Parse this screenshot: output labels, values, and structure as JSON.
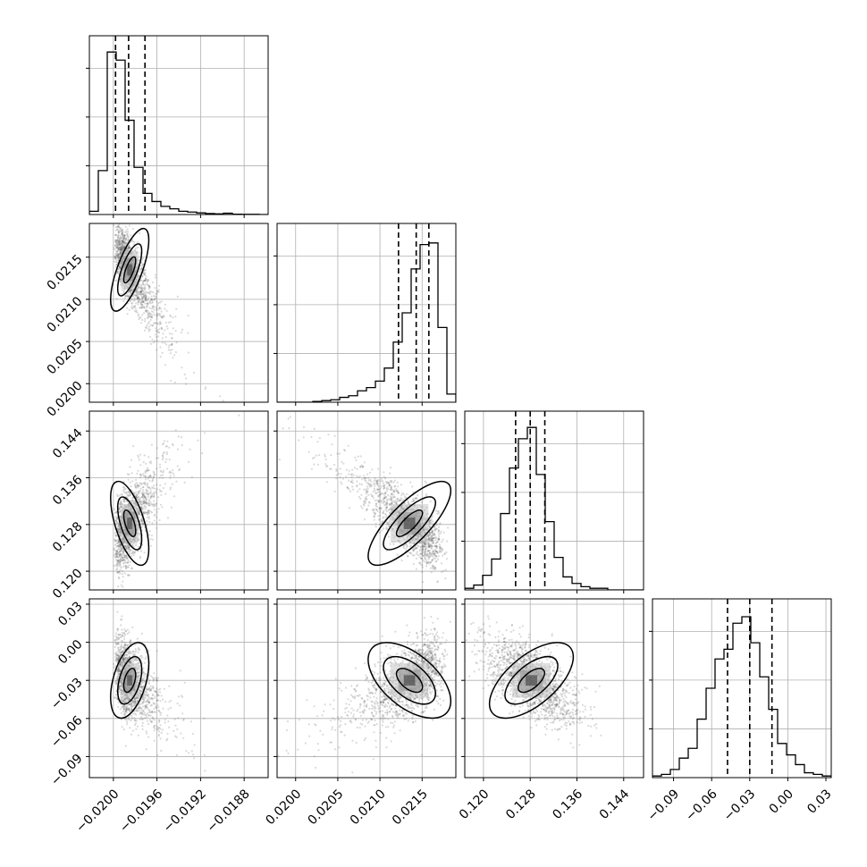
{
  "chart_data": {
    "type": "corner",
    "grid": true,
    "parameters": [
      {
        "ticks": [
          -0.02,
          -0.0196,
          -0.0192,
          -0.0188
        ],
        "tick_labels": [
          "−0.0200",
          "−0.0196",
          "−0.0192",
          "−0.0188"
        ],
        "range": [
          -0.02022,
          -0.01858
        ]
      },
      {
        "ticks": [
          0.02,
          0.0205,
          0.021,
          0.0215
        ],
        "tick_labels": [
          "0.0200",
          "0.0205",
          "0.0210",
          "0.0215"
        ],
        "range": [
          0.01978,
          0.0219
        ]
      },
      {
        "ticks": [
          0.12,
          0.128,
          0.136,
          0.144
        ],
        "tick_labels": [
          "0.120",
          "0.128",
          "0.136",
          "0.144"
        ],
        "range": [
          0.1168,
          0.1474
        ]
      },
      {
        "ticks": [
          -0.09,
          -0.06,
          -0.03,
          0.0,
          0.03
        ],
        "tick_labels": [
          "−0.09",
          "−0.06",
          "−0.03",
          "0.00",
          "0.03"
        ],
        "range": [
          -0.1066,
          0.0342
        ]
      }
    ],
    "quantiles": [
      [
        -0.01998,
        -0.01986,
        -0.01971
      ],
      [
        0.02122,
        0.02143,
        0.02158
      ],
      [
        0.1255,
        0.128,
        0.1305
      ],
      [
        -0.0475,
        -0.03,
        -0.0125
      ]
    ],
    "histograms": [
      {
        "counts": [
          0.02,
          0.27,
          1.0,
          0.95,
          0.58,
          0.29,
          0.13,
          0.08,
          0.05,
          0.035,
          0.02,
          0.015,
          0.01,
          0.006,
          0.004,
          0.008,
          0.002,
          0.001,
          0.001,
          0.0
        ]
      },
      {
        "counts": [
          0.0,
          0.0,
          0.0,
          0.0,
          0.005,
          0.01,
          0.015,
          0.03,
          0.04,
          0.07,
          0.09,
          0.13,
          0.21,
          0.37,
          0.55,
          0.82,
          0.97,
          0.98,
          0.46,
          0.05
        ]
      },
      {
        "counts": [
          0.01,
          0.03,
          0.09,
          0.19,
          0.47,
          0.75,
          0.93,
          1.0,
          0.71,
          0.42,
          0.2,
          0.08,
          0.04,
          0.02,
          0.01,
          0.01,
          0.0,
          0.0,
          0.0,
          0.0
        ]
      },
      {
        "counts": [
          0.01,
          0.02,
          0.05,
          0.12,
          0.18,
          0.36,
          0.55,
          0.73,
          0.79,
          0.95,
          0.99,
          0.83,
          0.62,
          0.42,
          0.21,
          0.14,
          0.08,
          0.03,
          0.02,
          0.01
        ]
      }
    ],
    "pairs": [
      {
        "x": 0,
        "y": 1,
        "mean": [
          -0.01985,
          0.02135
        ],
        "sd": [
          0.0001,
          0.00028
        ],
        "rho": -0.72,
        "skew": 1.6
      },
      {
        "x": 0,
        "y": 2,
        "mean": [
          -0.01985,
          0.1282
        ],
        "sd": [
          0.0001,
          0.0041
        ],
        "rho": 0.6,
        "skew": 1.6
      },
      {
        "x": 0,
        "y": 3,
        "mean": [
          -0.01985,
          -0.03
        ],
        "sd": [
          0.0001,
          0.017
        ],
        "rho": -0.45,
        "skew": 1.6
      },
      {
        "x": 1,
        "y": 2,
        "mean": [
          0.02135,
          0.1282
        ],
        "sd": [
          0.00028,
          0.0041
        ],
        "rho": -0.78,
        "skew": -1.4
      },
      {
        "x": 1,
        "y": 3,
        "mean": [
          0.02135,
          -0.03
        ],
        "sd": [
          0.00028,
          0.017
        ],
        "rho": 0.55,
        "skew": -1.4
      },
      {
        "x": 2,
        "y": 3,
        "mean": [
          0.1282,
          -0.03
        ],
        "sd": [
          0.0041,
          0.017
        ],
        "rho": -0.62,
        "skew": 0.0
      }
    ]
  }
}
